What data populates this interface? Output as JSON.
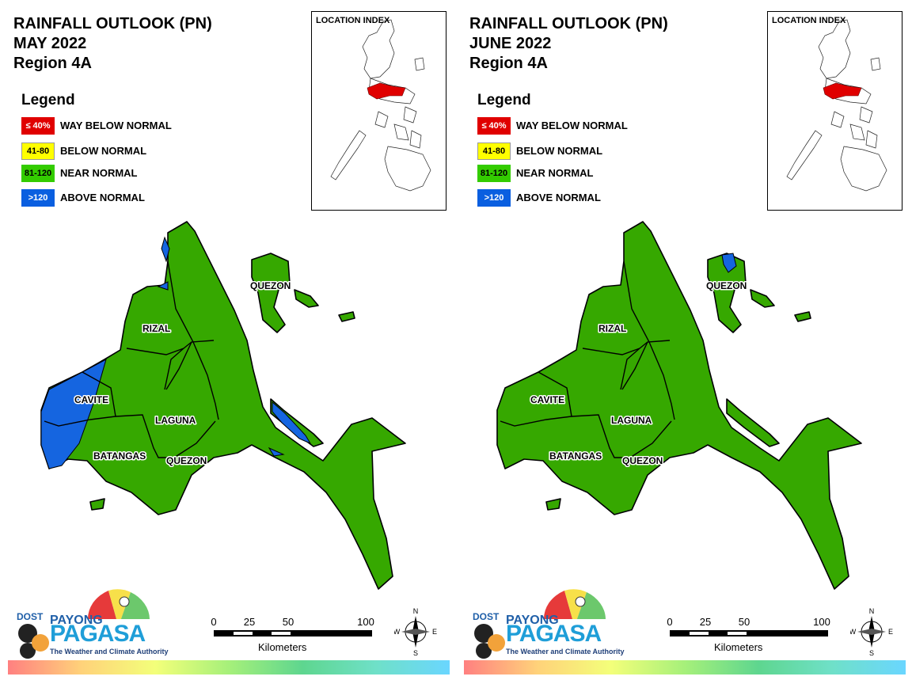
{
  "panels": [
    {
      "title_lines": [
        "RAINFALL OUTLOOK (PN)",
        "MAY 2022",
        "Region 4A"
      ],
      "index_title": "LOCATION INDEX",
      "legend_title": "Legend",
      "legend": [
        {
          "range": "≤ 40%",
          "label": "WAY BELOW NORMAL",
          "color": "#e00000",
          "text_color": "#ffffff"
        },
        {
          "range": "41-80",
          "label": "BELOW NORMAL",
          "color": "#ffff00",
          "text_color": "#000000"
        },
        {
          "range": "81-120",
          "label": "NEAR NORMAL",
          "color": "#33cc00",
          "text_color": "#000000"
        },
        {
          "range": ">120",
          "label": "ABOVE NORMAL",
          "color": "#0a5fe0",
          "text_color": "#ffffff"
        }
      ],
      "provinces": {
        "rizal": "RIZAL",
        "cavite": "CAVITE",
        "laguna": "LAGUNA",
        "batangas": "BATANGAS",
        "quezon_south": "QUEZON",
        "quezon_north": "QUEZON"
      },
      "above_normal_areas": [
        "cavite-west",
        "rizal-west-coast",
        "quezon-bay"
      ],
      "logo": {
        "dost": "DOST",
        "payong": "PAYONG",
        "pagasa": "PAGASA",
        "tagline": "The Weather and Climate Authority"
      },
      "scale": {
        "ticks": [
          "0",
          "25",
          "50",
          "100"
        ],
        "unit": "Kilometers"
      },
      "compass": {
        "n": "N",
        "s": "S",
        "e": "E",
        "w": "W"
      }
    },
    {
      "title_lines": [
        "RAINFALL OUTLOOK (PN)",
        "JUNE 2022",
        "Region 4A"
      ],
      "index_title": "LOCATION INDEX",
      "legend_title": "Legend",
      "legend": [
        {
          "range": "≤ 40%",
          "label": "WAY BELOW NORMAL",
          "color": "#e00000",
          "text_color": "#ffffff"
        },
        {
          "range": "41-80",
          "label": "BELOW NORMAL",
          "color": "#ffff00",
          "text_color": "#000000"
        },
        {
          "range": "81-120",
          "label": "NEAR NORMAL",
          "color": "#33cc00",
          "text_color": "#000000"
        },
        {
          "range": ">120",
          "label": "ABOVE NORMAL",
          "color": "#0a5fe0",
          "text_color": "#ffffff"
        }
      ],
      "provinces": {
        "rizal": "RIZAL",
        "cavite": "CAVITE",
        "laguna": "LAGUNA",
        "batangas": "BATANGAS",
        "quezon_south": "QUEZON",
        "quezon_north": "QUEZON"
      },
      "above_normal_areas": [
        "quezon-north-tip"
      ],
      "logo": {
        "dost": "DOST",
        "payong": "PAYONG",
        "pagasa": "PAGASA",
        "tagline": "The Weather and Climate Authority"
      },
      "scale": {
        "ticks": [
          "0",
          "25",
          "50",
          "100"
        ],
        "unit": "Kilometers"
      },
      "compass": {
        "n": "N",
        "s": "S",
        "e": "E",
        "w": "W"
      }
    }
  ],
  "colors": {
    "near_normal_fill": "#36a800",
    "above_normal_fill": "#1565e0",
    "highlight_region": "#e00000"
  }
}
